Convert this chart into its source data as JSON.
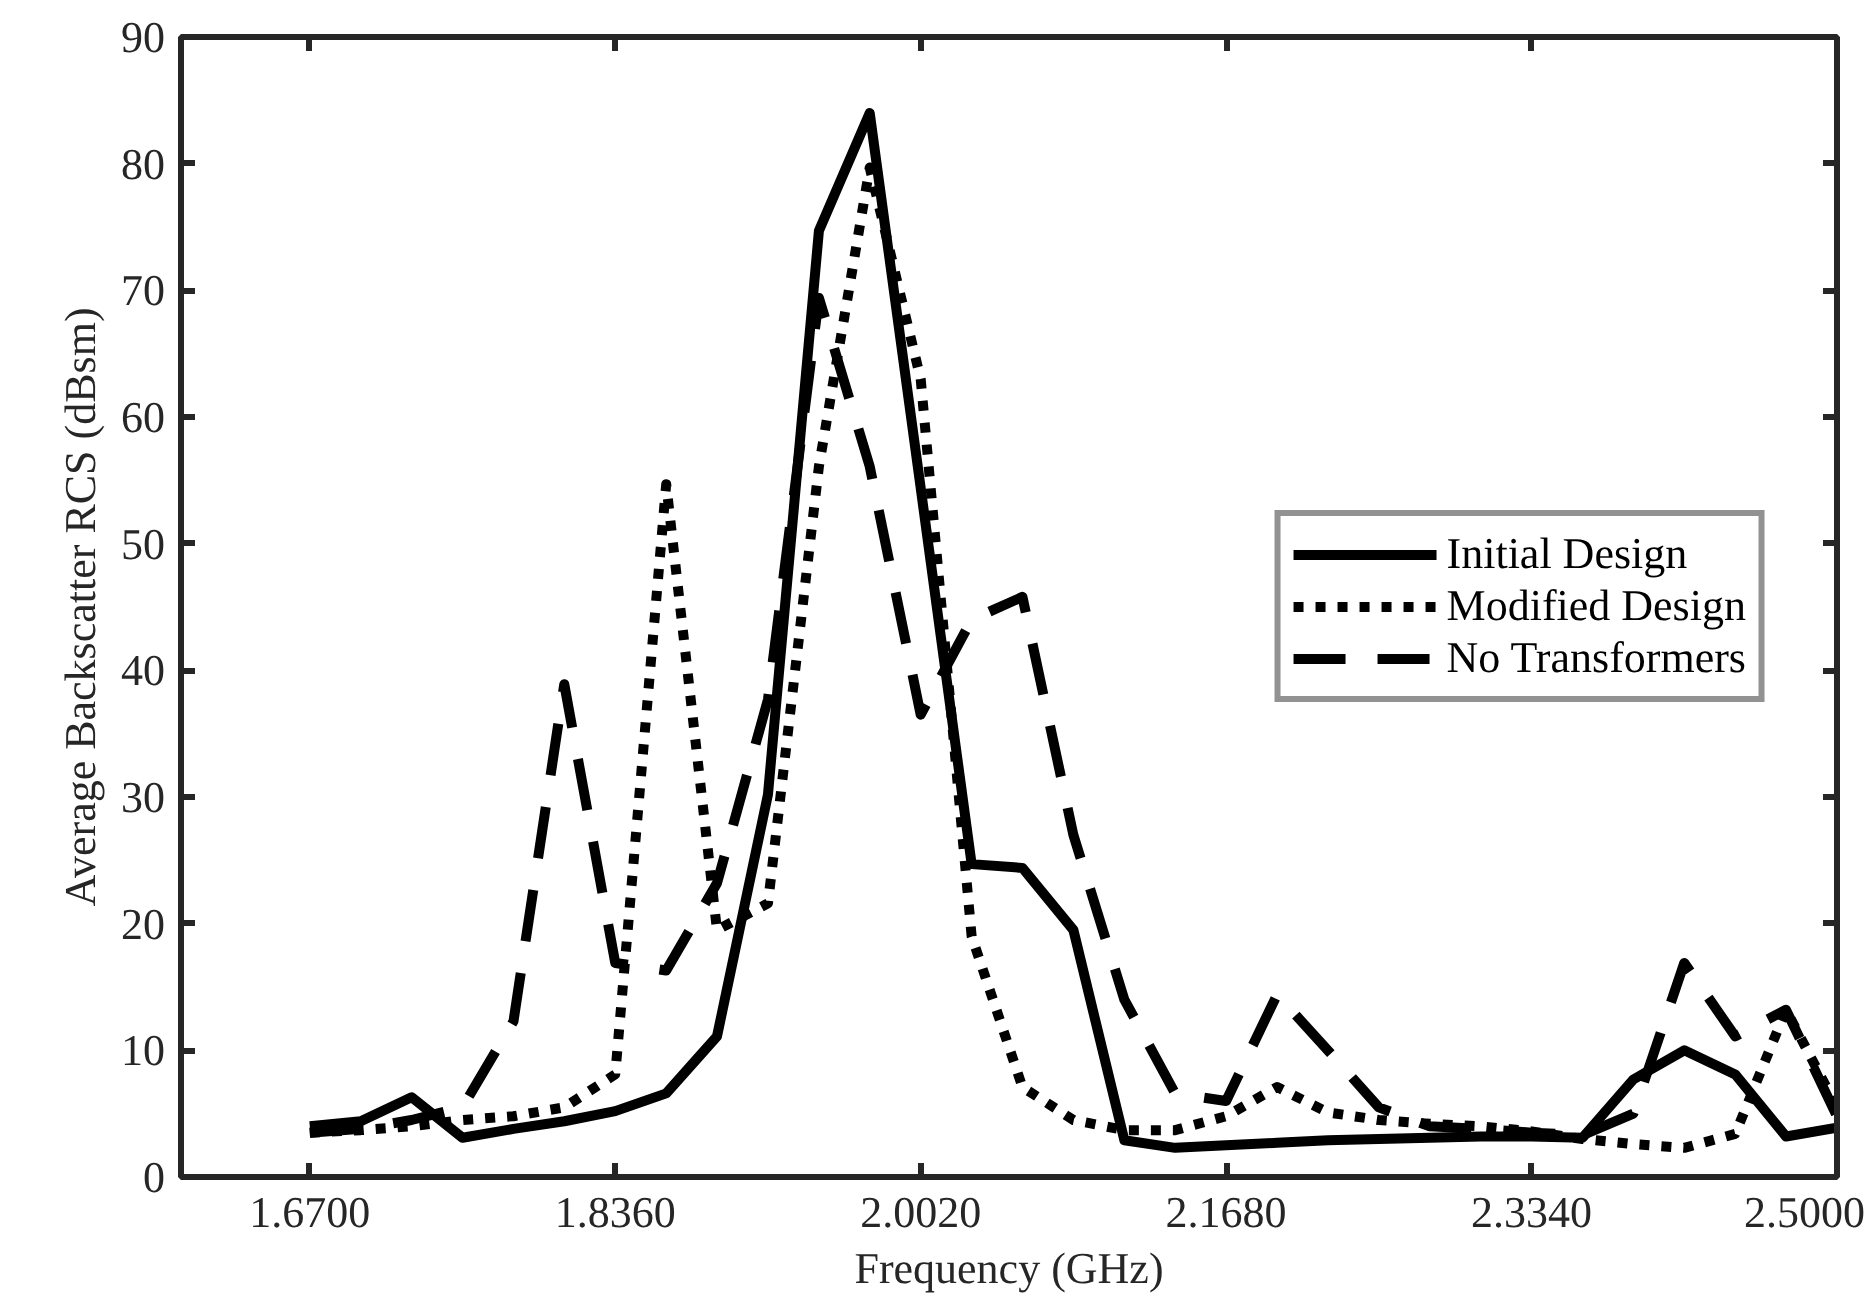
{
  "chart_data": {
    "type": "line",
    "xlabel": "Frequency (GHz)",
    "ylabel": "Average Backscatter RCS (dBsm)",
    "x": [
      1.67,
      1.6977,
      1.7253,
      1.753,
      1.7807,
      1.8083,
      1.836,
      1.8637,
      1.8913,
      1.919,
      1.9467,
      1.9743,
      2.002,
      2.0297,
      2.0573,
      2.085,
      2.1127,
      2.1403,
      2.168,
      2.1957,
      2.2233,
      2.251,
      2.2787,
      2.3063,
      2.334,
      2.3617,
      2.3893,
      2.417,
      2.4447,
      2.4723,
      2.5
    ],
    "series": [
      {
        "name": "Initial Design",
        "color": "#000000",
        "line_style": "solid",
        "values": [
          4.0,
          4.4,
          6.3,
          3.1,
          3.8,
          4.4,
          5.2,
          6.6,
          11.1,
          30.2,
          74.7,
          84.0,
          54.4,
          24.7,
          24.4,
          19.5,
          2.9,
          2.3,
          2.5,
          2.7,
          2.9,
          3.0,
          3.1,
          3.2,
          3.2,
          3.1,
          7.7,
          10.0,
          8.1,
          3.2,
          3.9
        ]
      },
      {
        "name": "Modified Design",
        "color": "#000000",
        "line_style": "dotted",
        "values": [
          3.5,
          3.7,
          4.0,
          4.5,
          4.8,
          5.5,
          8.1,
          54.7,
          19.5,
          21.6,
          56.1,
          79.7,
          63.0,
          19.0,
          7.1,
          4.5,
          3.7,
          3.7,
          4.8,
          7.1,
          5.1,
          4.5,
          4.2,
          4.0,
          3.6,
          3.0,
          2.6,
          2.3,
          3.4,
          13.2,
          5.5
        ]
      },
      {
        "name": "No Transformers",
        "color": "#000000",
        "line_style": "dashed",
        "values": [
          3.5,
          3.8,
          4.5,
          5.5,
          12.3,
          38.9,
          16.9,
          16.3,
          23.2,
          37.7,
          69.4,
          56.1,
          36.5,
          44.0,
          45.8,
          27.0,
          14.0,
          6.6,
          6.0,
          14.4,
          10.0,
          5.5,
          4.0,
          3.8,
          3.5,
          3.3,
          5.0,
          16.9,
          11.1,
          13.2,
          4.8
        ]
      }
    ],
    "xlim": [
      1.6,
      2.5
    ],
    "xticks": [
      {
        "value": 1.67,
        "label": "1.6700"
      },
      {
        "value": 1.836,
        "label": "1.8360"
      },
      {
        "value": 2.002,
        "label": "2.0020"
      },
      {
        "value": 2.168,
        "label": "2.1680"
      },
      {
        "value": 2.334,
        "label": "2.3340"
      },
      {
        "value": 2.5,
        "label": "2.5000"
      }
    ],
    "ylim": [
      0,
      90
    ],
    "yticks": [
      0,
      10,
      20,
      30,
      40,
      50,
      60,
      70,
      80,
      90
    ],
    "grid": false,
    "legend": "right",
    "marker": "none"
  }
}
